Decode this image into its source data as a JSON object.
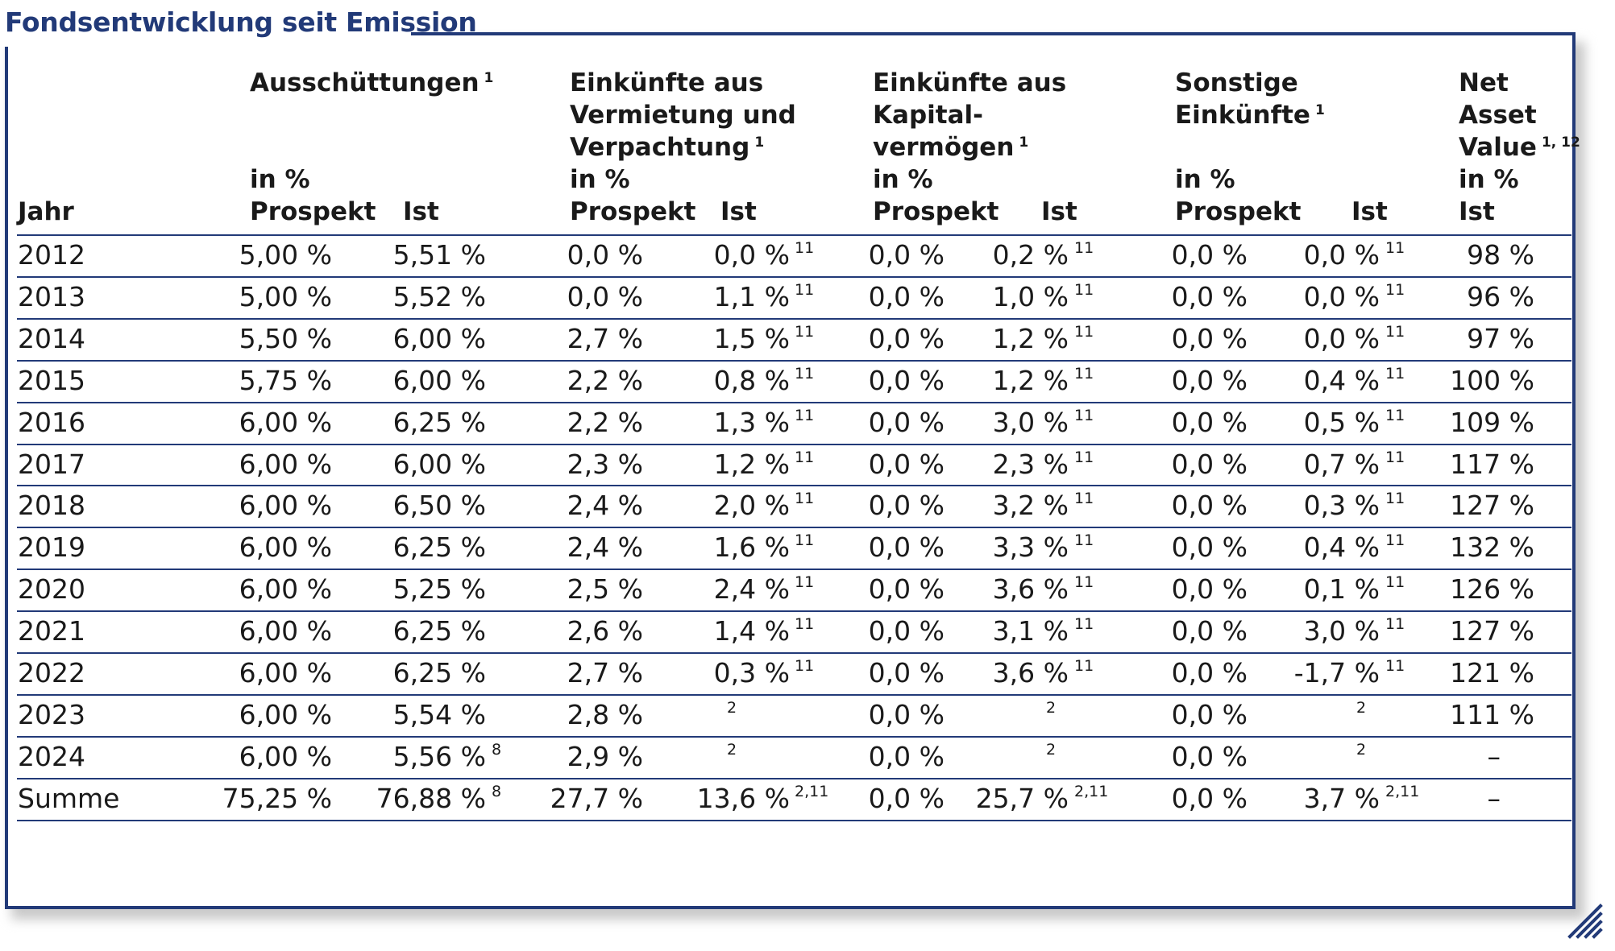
{
  "title": "Fondsentwicklung seit Emission",
  "headers": {
    "col1": [
      "Jahr"
    ],
    "col2": [
      "Ausschüttungen"
    ],
    "col2_fn": "1",
    "col4": [
      "Einkünfte aus",
      "Vermietung und",
      "Verpachtung"
    ],
    "col4_fn": "1",
    "col6": [
      "Einkünfte aus",
      "Kapital-",
      "vermögen"
    ],
    "col6_fn": "1",
    "col8": [
      "Sonstige",
      "Einkünfte"
    ],
    "col8_fn": "1",
    "col10": [
      "Net",
      "Asset",
      "Value"
    ],
    "col10_fn": "1, 12",
    "unit": "in %",
    "prospekt": "Prospekt",
    "ist": "Ist"
  },
  "rows": [
    [
      "2012",
      "5,00 %",
      "5,51 %",
      "",
      "0,0 %",
      "0,0 %",
      "11",
      "0,0 %",
      "0,2 %",
      "11",
      "0,0 %",
      "0,0 %",
      "11",
      "98 %"
    ],
    [
      "2013",
      "5,00 %",
      "5,52 %",
      "",
      "0,0 %",
      "1,1 %",
      "11",
      "0,0 %",
      "1,0 %",
      "11",
      "0,0 %",
      "0,0 %",
      "11",
      "96 %"
    ],
    [
      "2014",
      "5,50 %",
      "6,00 %",
      "",
      "2,7 %",
      "1,5 %",
      "11",
      "0,0 %",
      "1,2 %",
      "11",
      "0,0 %",
      "0,0 %",
      "11",
      "97 %"
    ],
    [
      "2015",
      "5,75 %",
      "6,00 %",
      "",
      "2,2 %",
      "0,8 %",
      "11",
      "0,0 %",
      "1,2 %",
      "11",
      "0,0 %",
      "0,4 %",
      "11",
      "100 %"
    ],
    [
      "2016",
      "6,00 %",
      "6,25 %",
      "",
      "2,2 %",
      "1,3 %",
      "11",
      "0,0 %",
      "3,0 %",
      "11",
      "0,0 %",
      "0,5 %",
      "11",
      "109 %"
    ],
    [
      "2017",
      "6,00 %",
      "6,00 %",
      "",
      "2,3 %",
      "1,2 %",
      "11",
      "0,0 %",
      "2,3 %",
      "11",
      "0,0 %",
      "0,7 %",
      "11",
      "117 %"
    ],
    [
      "2018",
      "6,00 %",
      "6,50 %",
      "",
      "2,4 %",
      "2,0 %",
      "11",
      "0,0 %",
      "3,2 %",
      "11",
      "0,0 %",
      "0,3 %",
      "11",
      "127 %"
    ],
    [
      "2019",
      "6,00 %",
      "6,25 %",
      "",
      "2,4 %",
      "1,6 %",
      "11",
      "0,0 %",
      "3,3 %",
      "11",
      "0,0 %",
      "0,4 %",
      "11",
      "132 %"
    ],
    [
      "2020",
      "6,00 %",
      "5,25 %",
      "",
      "2,5 %",
      "2,4 %",
      "11",
      "0,0 %",
      "3,6 %",
      "11",
      "0,0 %",
      "0,1 %",
      "11",
      "126 %"
    ],
    [
      "2021",
      "6,00 %",
      "6,25 %",
      "",
      "2,6 %",
      "1,4 %",
      "11",
      "0,0 %",
      "3,1 %",
      "11",
      "0,0 %",
      "3,0 %",
      "11",
      "127 %"
    ],
    [
      "2022",
      "6,00 %",
      "6,25 %",
      "",
      "2,7 %",
      "0,3 %",
      "11",
      "0,0 %",
      "3,6 %",
      "11",
      "0,0 %",
      "-1,7 %",
      "11",
      "121 %"
    ],
    [
      "2023",
      "6,00 %",
      "5,54 %",
      "",
      "2,8 %",
      "",
      "2",
      "0,0 %",
      "",
      "2",
      "0,0 %",
      "",
      "2",
      "111 %"
    ],
    [
      "2024",
      "6,00 %",
      "5,56 %",
      "8",
      "2,9 %",
      "",
      "2",
      "0,0 %",
      "",
      "2",
      "0,0 %",
      "",
      "2",
      "–"
    ],
    [
      "Summe",
      "75,25 %",
      "76,88 %",
      "8",
      "27,7 %",
      "13,6 %",
      "2,11",
      "0,0 %",
      "25,7 %",
      "2,11",
      "0,0 %",
      "3,7 %",
      "2,11",
      "–"
    ]
  ]
}
